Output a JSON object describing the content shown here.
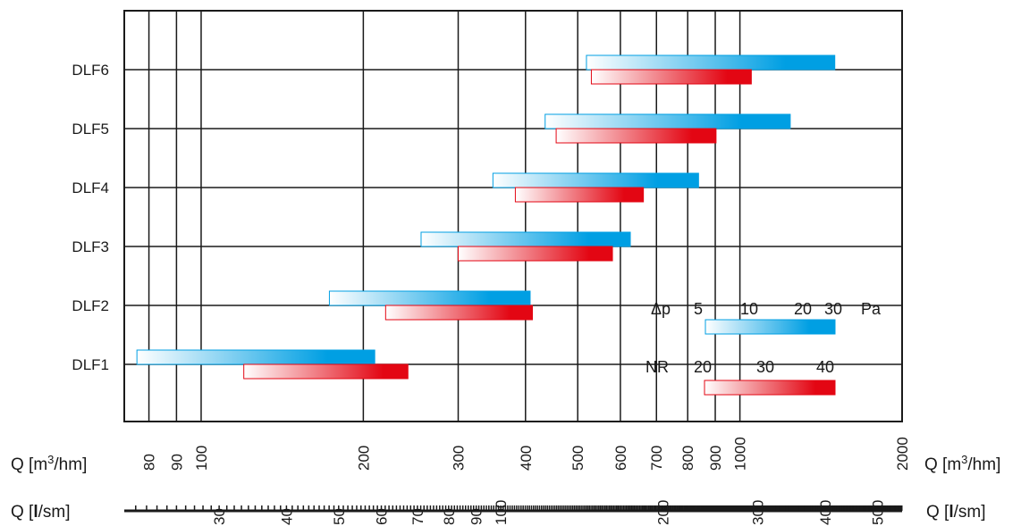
{
  "chart_data": {
    "type": "bar",
    "orientation": "horizontal-range",
    "x_scale": "log",
    "xlim": [
      72,
      2000
    ],
    "categories": [
      "DLF1",
      "DLF2",
      "DLF3",
      "DLF4",
      "DLF5",
      "DLF6"
    ],
    "series": [
      {
        "color": "#009fe3",
        "ranges": [
          [
            76,
            210
          ],
          [
            173,
            408
          ],
          [
            256,
            626
          ],
          [
            348,
            838
          ],
          [
            435,
            1240
          ],
          [
            519,
            1500
          ]
        ]
      },
      {
        "color": "#e30613",
        "ranges": [
          [
            120,
            242
          ],
          [
            220,
            412
          ],
          [
            300,
            580
          ],
          [
            383,
            662
          ],
          [
            456,
            903
          ],
          [
            530,
            1050
          ]
        ]
      }
    ],
    "x_axis_m3h": {
      "label": "Q [m³/hm]",
      "label_base": "Q [m",
      "label_sup": "3",
      "label_end": "/hm]",
      "ticks": [
        80,
        90,
        100,
        200,
        300,
        400,
        500,
        600,
        700,
        800,
        900,
        1000,
        2000
      ],
      "tick_labels": [
        "80",
        "90",
        "100",
        "200",
        "300",
        "400",
        "500",
        "600",
        "700",
        "800",
        "900",
        "1000",
        "2000"
      ]
    },
    "x_axis_ls": {
      "label": "Q [l/sm]",
      "label_base": "Q [",
      "label_bold": "l",
      "label_end": "/sm]",
      "ticks": [
        30,
        40,
        50,
        60,
        70,
        80,
        90,
        100,
        200,
        300,
        400,
        500
      ],
      "tick_labels": [
        "30",
        "40",
        "50",
        "60",
        "70",
        "80",
        "90",
        "100",
        "200",
        "300",
        "400",
        "500"
      ],
      "conversion_m3h_per_ls": 3.6
    },
    "legend": {
      "pressure": {
        "prefix": "Δp",
        "values": [
          "5",
          "10",
          "20",
          "30"
        ],
        "unit": "Pa",
        "color": "#009fe3"
      },
      "noise": {
        "prefix": "NR",
        "values": [
          "20",
          "30",
          "40"
        ],
        "color": "#e30613"
      }
    },
    "grid": true
  }
}
